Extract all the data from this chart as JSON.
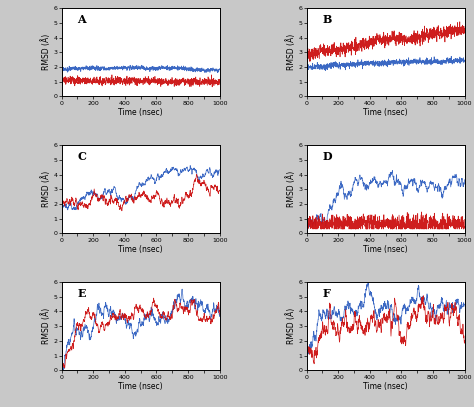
{
  "panels": [
    "A",
    "B",
    "C",
    "D",
    "E",
    "F"
  ],
  "xlim": [
    0,
    1000
  ],
  "ylim": [
    0,
    6
  ],
  "xticks": [
    0,
    100,
    200,
    300,
    400,
    500,
    600,
    700,
    800,
    900,
    1000
  ],
  "yticks": [
    0,
    1,
    2,
    3,
    4,
    5,
    6
  ],
  "xlabel": "Time (nsec)",
  "ylabel": "RMSD (Å)",
  "blue_color": "#3060C0",
  "red_color": "#CC1010",
  "bg_color": "#C8C8C8",
  "fig_width": 4.74,
  "fig_height": 4.07,
  "dpi": 100
}
